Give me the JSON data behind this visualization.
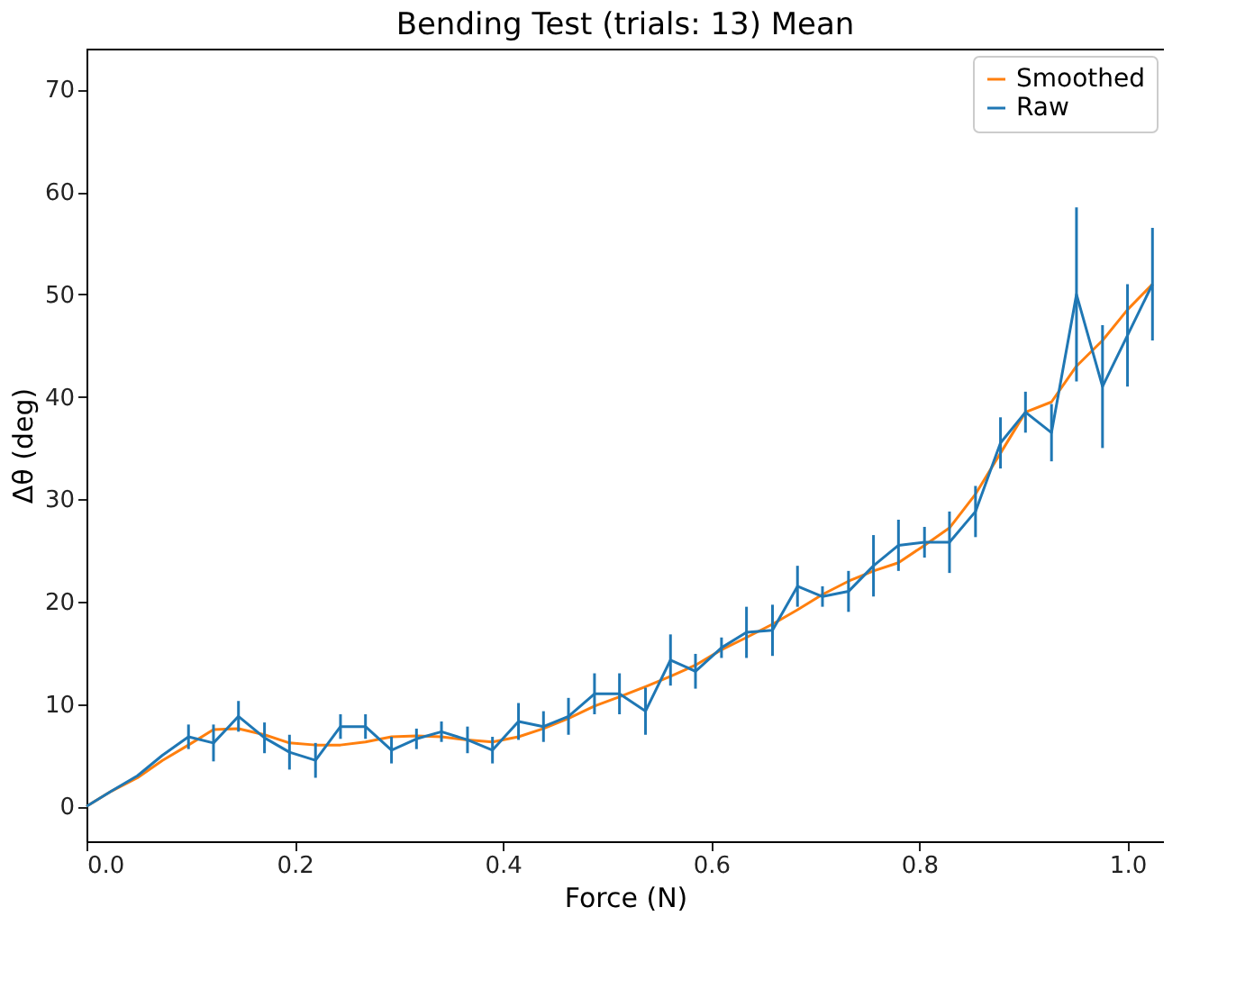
{
  "chart_data": {
    "type": "line",
    "title": "Bending Test (trials: 13) Mean",
    "xlabel": "Force (N)",
    "ylabel": "Δθ (deg)",
    "x": [
      0,
      0.024,
      0.049,
      0.073,
      0.098,
      0.122,
      0.146,
      0.171,
      0.195,
      0.22,
      0.244,
      0.268,
      0.293,
      0.317,
      0.341,
      0.366,
      0.39,
      0.415,
      0.439,
      0.463,
      0.488,
      0.512,
      0.537,
      0.561,
      0.585,
      0.61,
      0.634,
      0.659,
      0.683,
      0.707,
      0.732,
      0.756,
      0.78,
      0.805,
      0.829,
      0.854,
      0.878,
      0.902,
      0.927,
      0.951,
      0.976,
      1.0,
      1.024
    ],
    "series": [
      {
        "name": "Smoothed",
        "color": "#ff7f0e",
        "values": [
          0,
          1.5,
          2.8,
          4.5,
          6,
          7.5,
          7.6,
          7,
          6.2,
          6,
          6,
          6.3,
          6.8,
          6.9,
          6.8,
          6.5,
          6.3,
          6.8,
          7.6,
          8.6,
          9.8,
          10.7,
          11.7,
          12.7,
          13.8,
          15.3,
          16.5,
          17.8,
          19.2,
          20.7,
          22,
          23,
          23.8,
          25.5,
          27.2,
          30.5,
          34.5,
          38.5,
          39.5,
          43,
          45.5,
          48.5,
          51
        ]
      },
      {
        "name": "Raw",
        "color": "#1f77b4",
        "values": [
          0,
          1.5,
          3,
          5,
          6.8,
          6.2,
          8.8,
          6.7,
          5.3,
          4.5,
          7.8,
          7.8,
          5.5,
          6.6,
          7.3,
          6.5,
          5.5,
          8.3,
          7.8,
          8.8,
          11,
          11,
          9.3,
          14.3,
          13.2,
          15.5,
          17,
          17.2,
          21.5,
          20.5,
          21,
          23.5,
          25.5,
          25.8,
          25.8,
          28.8,
          35.5,
          38.5,
          36.5,
          50,
          41,
          46,
          51
        ],
        "errors": [
          null,
          null,
          null,
          null,
          1.2,
          1.8,
          1.5,
          1.5,
          1.7,
          1.7,
          1.2,
          1.2,
          1.3,
          1,
          1,
          1.3,
          1.3,
          1.8,
          1.5,
          1.8,
          2,
          2,
          2.3,
          2.5,
          1.7,
          1,
          2.5,
          2.5,
          2,
          1,
          2,
          3,
          2.5,
          1.5,
          3,
          2.5,
          2.5,
          2,
          2.8,
          8.5,
          6,
          5,
          5.5
        ]
      }
    ],
    "xlim": [
      0,
      1.035
    ],
    "ylim": [
      -3.4,
      74
    ],
    "xticks": [
      {
        "value": 0,
        "label": "0.0"
      },
      {
        "value": 0.2,
        "label": "0.2"
      },
      {
        "value": 0.4,
        "label": "0.4"
      },
      {
        "value": 0.6,
        "label": "0.6"
      },
      {
        "value": 0.8,
        "label": "0.8"
      },
      {
        "value": 1.0,
        "label": "1.0"
      }
    ],
    "yticks": [
      0,
      10,
      20,
      30,
      40,
      50,
      60,
      70
    ],
    "legend": "top right",
    "grid": false,
    "marker": "none",
    "line_style": "solid"
  }
}
